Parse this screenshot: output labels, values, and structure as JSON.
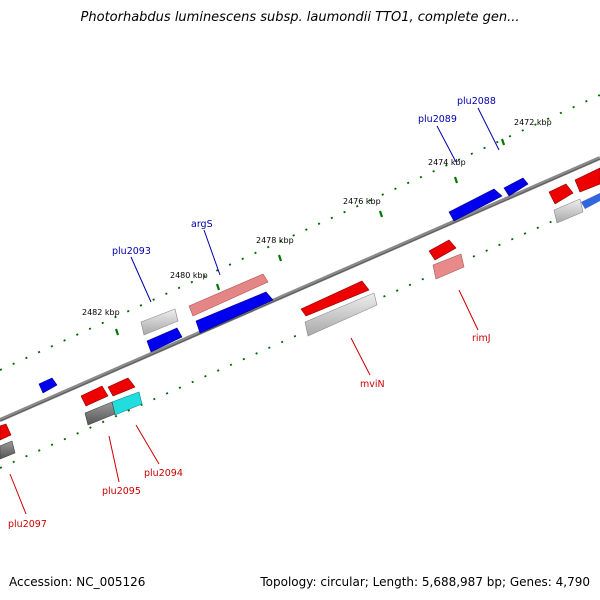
{
  "title": "Photorhabdus luminescens subsp. laumondii TTO1, complete gen...",
  "footer": {
    "accession": "Accession: NC_005126",
    "summary": "Topology: circular; Length: 5,688,987 bp; Genes: 4,790"
  },
  "colors": {
    "forward_gene": "#0000ee",
    "reverse_gene": "#ee0000",
    "rna_gene": "#e88080",
    "pseudo_gene": "#bbbbbb",
    "backbone": "#888888",
    "tick": "#007700",
    "forward_label": "#0000aa",
    "reverse_label": "#cc0000"
  },
  "ticks": [
    {
      "label": "2472 kbp"
    },
    {
      "label": "2474 kbp"
    },
    {
      "label": "2476 kbp"
    },
    {
      "label": "2478 kbp"
    },
    {
      "label": "2480 kbp"
    },
    {
      "label": "2482 kbp"
    }
  ],
  "gene_labels": [
    {
      "name": "plu2088",
      "strand": "forward"
    },
    {
      "name": "plu2089",
      "strand": "forward"
    },
    {
      "name": "argS",
      "strand": "forward"
    },
    {
      "name": "plu2093",
      "strand": "forward"
    },
    {
      "name": "rimJ",
      "strand": "reverse"
    },
    {
      "name": "mviN",
      "strand": "reverse"
    },
    {
      "name": "plu2094",
      "strand": "reverse"
    },
    {
      "name": "plu2095",
      "strand": "reverse"
    },
    {
      "name": "plu2097",
      "strand": "reverse"
    }
  ]
}
